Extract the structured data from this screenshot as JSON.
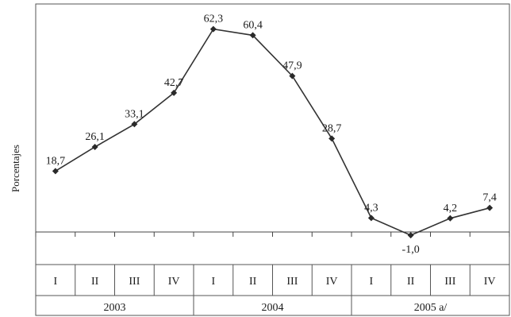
{
  "chart_data": {
    "type": "line",
    "ylabel": "Porcentajes",
    "categories": [
      "I",
      "II",
      "III",
      "IV",
      "I",
      "II",
      "III",
      "IV",
      "I",
      "II",
      "III",
      "IV"
    ],
    "groups": [
      {
        "label": "2003",
        "span": 4
      },
      {
        "label": "2004",
        "span": 4
      },
      {
        "label": "2005 a/",
        "span": 4
      }
    ],
    "series": [
      {
        "values": [
          18.7,
          26.1,
          33.1,
          42.7,
          62.3,
          60.4,
          47.9,
          28.7,
          4.3,
          -1.0,
          4.2,
          7.4
        ],
        "labels": [
          "18,7",
          "26,1",
          "33,1",
          "42,7",
          "62,3",
          "60,4",
          "47,9",
          "28,7",
          "4,3",
          "-1,0",
          "4,2",
          "7,4"
        ],
        "color": "#333333"
      }
    ],
    "ylim": [
      -10,
      70
    ],
    "grid": false,
    "legend": "none"
  }
}
